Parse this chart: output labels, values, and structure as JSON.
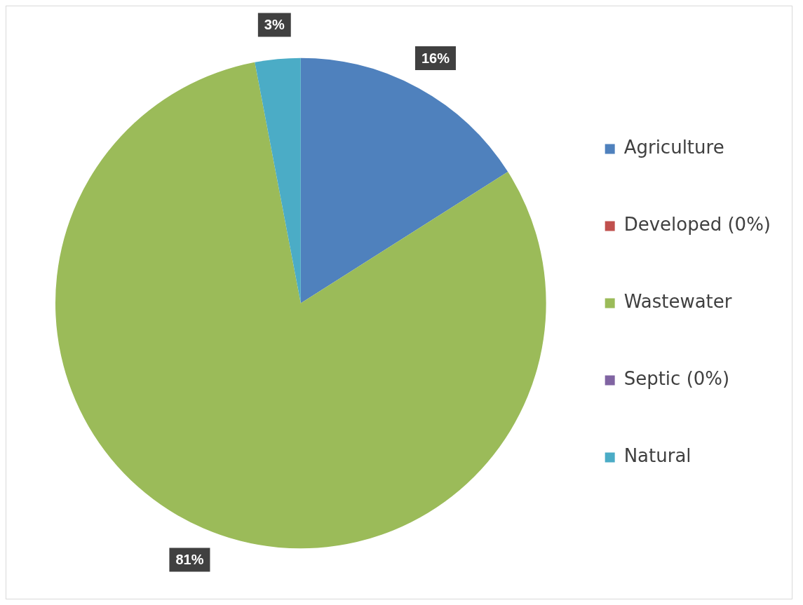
{
  "chart_data": {
    "type": "pie",
    "categories": [
      "Agriculture",
      "Developed (0%)",
      "Wastewater",
      "Septic (0%)",
      "Natural"
    ],
    "values": [
      16,
      0,
      81,
      0,
      3
    ],
    "colors": [
      "#4f81bd",
      "#c0504d",
      "#9bbb59",
      "#8064a2",
      "#4bacc6"
    ],
    "value_labels": [
      "16%",
      null,
      "81%",
      null,
      "3%"
    ],
    "legend": "right"
  }
}
